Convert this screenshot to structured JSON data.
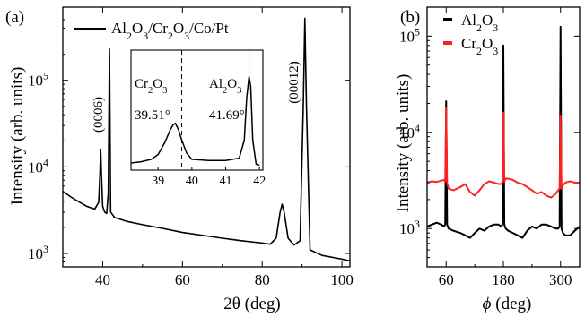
{
  "chart_data": [
    {
      "panel": "(a)",
      "type": "line",
      "xlabel": "2θ (deg)",
      "ylabel": "Intensity (arb. units)",
      "xlim": [
        30,
        102
      ],
      "ylim": [
        700,
        700000
      ],
      "yscale": "log",
      "xticks": [
        40,
        60,
        80,
        100
      ],
      "xtick_labels": [
        "40",
        "60",
        "80",
        "100"
      ],
      "yticks": [
        1000,
        10000,
        100000
      ],
      "ytick_labels": [
        "10",
        "10",
        "10"
      ],
      "ytick_exponents": [
        "3",
        "4",
        "5"
      ],
      "legend": {
        "position": "top-left",
        "entries": [
          {
            "parts": [
              {
                "t": "Al",
                "s": ""
              },
              {
                "t": "2",
                "s": "sub"
              },
              {
                "t": "O",
                "s": ""
              },
              {
                "t": "3",
                "s": "sub"
              },
              {
                "t": "/Cr",
                "s": ""
              },
              {
                "t": "2",
                "s": "sub"
              },
              {
                "t": "O",
                "s": ""
              },
              {
                "t": "3",
                "s": "sub"
              },
              {
                "t": "/Co/Pt",
                "s": ""
              }
            ],
            "color": "#000000"
          }
        ]
      },
      "annotations": [
        {
          "text": "(0006)",
          "x": 41.7,
          "rotation": -90
        },
        {
          "text": "(00012)",
          "x": 90.7,
          "rotation": -90
        }
      ],
      "series": [
        {
          "color": "#000000",
          "x": [
            30,
            32,
            34,
            36,
            38,
            39,
            39.3,
            39.5,
            39.7,
            40,
            40.5,
            41,
            41.4,
            41.6,
            41.7,
            41.8,
            42,
            43,
            46,
            50,
            55,
            60,
            65,
            70,
            75,
            80,
            82,
            83.5,
            84.5,
            85,
            85.5,
            86.5,
            88,
            89.5,
            90.3,
            90.7,
            91.1,
            92,
            95,
            100,
            102
          ],
          "y": [
            5200,
            4500,
            3950,
            3500,
            3250,
            3900,
            8000,
            16000,
            8000,
            3500,
            3000,
            2900,
            5000,
            60000,
            230000,
            60000,
            3000,
            2600,
            2350,
            2150,
            1950,
            1750,
            1620,
            1500,
            1400,
            1320,
            1280,
            1500,
            3000,
            3700,
            3000,
            1500,
            1250,
            1400,
            50000,
            520000,
            50000,
            1100,
            950,
            860,
            820
          ]
        }
      ],
      "inset": {
        "xlim": [
          38.2,
          42.1
        ],
        "xticks": [
          39,
          40,
          41,
          42
        ],
        "xtick_labels": [
          "39",
          "40",
          "41",
          "42"
        ],
        "ylim": [
          0,
          1
        ],
        "dashed_line_x": 39.7,
        "solid_line_x": 41.69,
        "labels": [
          {
            "parts": [
              {
                "t": "Cr",
                "s": ""
              },
              {
                "t": "2",
                "s": "sub"
              },
              {
                "t": "O",
                "s": ""
              },
              {
                "t": "3",
                "s": "sub"
              }
            ],
            "value": "39.51°"
          },
          {
            "parts": [
              {
                "t": "Al",
                "s": ""
              },
              {
                "t": "2",
                "s": "sub"
              },
              {
                "t": "O",
                "s": ""
              },
              {
                "t": "3",
                "s": "sub"
              }
            ],
            "value": "41.69°"
          }
        ],
        "series": {
          "x": [
            38.2,
            38.5,
            38.8,
            39.0,
            39.2,
            39.35,
            39.45,
            39.51,
            39.6,
            39.7,
            39.85,
            40.0,
            40.5,
            41.0,
            41.4,
            41.55,
            41.62,
            41.69,
            41.74,
            41.8,
            41.9,
            42.0
          ],
          "y": [
            0.06,
            0.07,
            0.09,
            0.13,
            0.23,
            0.33,
            0.38,
            0.39,
            0.34,
            0.25,
            0.14,
            0.09,
            0.08,
            0.08,
            0.1,
            0.25,
            0.6,
            0.78,
            0.7,
            0.25,
            0.05,
            0.04
          ]
        }
      }
    },
    {
      "panel": "(b)",
      "type": "line",
      "xlabel": "ϕ (deg)",
      "ylabel": "Intensity (arb. units)",
      "xlim": [
        20,
        340
      ],
      "ylim": [
        400,
        200000
      ],
      "yscale": "log",
      "xticks": [
        60,
        180,
        300
      ],
      "xtick_labels": [
        "60",
        "180",
        "300"
      ],
      "yticks": [
        1000,
        10000,
        100000
      ],
      "ytick_labels": [
        "10",
        "10",
        "10"
      ],
      "ytick_exponents": [
        "3",
        "4",
        "5"
      ],
      "legend": {
        "position": "top-left",
        "entries": [
          {
            "parts": [
              {
                "t": "Al",
                "s": ""
              },
              {
                "t": "2",
                "s": "sub"
              },
              {
                "t": "O",
                "s": ""
              },
              {
                "t": "3",
                "s": "sub"
              }
            ],
            "color": "#000000"
          },
          {
            "parts": [
              {
                "t": "Cr",
                "s": ""
              },
              {
                "t": "2",
                "s": "sub"
              },
              {
                "t": "O",
                "s": ""
              },
              {
                "t": "3",
                "s": "sub"
              }
            ],
            "color": "#ff2020"
          }
        ]
      },
      "series": [
        {
          "name": "Al2O3",
          "color": "#000000",
          "x": [
            20,
            30,
            40,
            50,
            55,
            58,
            60,
            62,
            65,
            75,
            90,
            100,
            110,
            120,
            130,
            140,
            150,
            160,
            170,
            175,
            178,
            180,
            182,
            185,
            190,
            200,
            210,
            220,
            230,
            240,
            250,
            260,
            270,
            280,
            290,
            295,
            298,
            300,
            302,
            305,
            310,
            320,
            330,
            340
          ],
          "y": [
            1050,
            1100,
            1150,
            1100,
            1050,
            1100,
            21000,
            1100,
            1000,
            950,
            900,
            850,
            800,
            900,
            1000,
            950,
            1050,
            1100,
            1100,
            1050,
            1100,
            80000,
            1100,
            1000,
            950,
            900,
            850,
            800,
            950,
            1050,
            1000,
            1100,
            1100,
            1050,
            1000,
            1000,
            1050,
            125000,
            1000,
            900,
            850,
            850,
            950,
            1050
          ]
        },
        {
          "name": "Cr2O3",
          "color": "#ff2020",
          "x": [
            20,
            30,
            40,
            50,
            55,
            58,
            60,
            62,
            65,
            75,
            90,
            100,
            110,
            120,
            130,
            140,
            150,
            160,
            170,
            175,
            178,
            180,
            182,
            185,
            190,
            200,
            210,
            220,
            230,
            240,
            250,
            260,
            270,
            280,
            290,
            295,
            298,
            300,
            302,
            305,
            310,
            320,
            330,
            340
          ],
          "y": [
            3000,
            3100,
            3050,
            3150,
            3200,
            3100,
            18000,
            3000,
            2600,
            2500,
            2700,
            2900,
            2400,
            2200,
            2500,
            2900,
            3100,
            3000,
            2900,
            2900,
            3000,
            16000,
            3100,
            3300,
            3300,
            3200,
            3000,
            2900,
            2700,
            2500,
            2300,
            2400,
            2200,
            2100,
            2300,
            2500,
            2600,
            15000,
            2600,
            2800,
            3000,
            3100,
            3000,
            3000
          ]
        }
      ]
    }
  ]
}
